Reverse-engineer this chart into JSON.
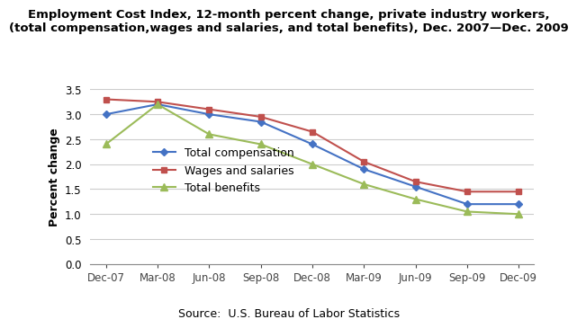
{
  "title_line1": "Employment Cost Index, 12-month percent change, private industry workers,",
  "title_line2": "(total compensation,wages and salaries, and total benefits), Dec. 2007—Dec. 2009",
  "source": "Source:  U.S. Bureau of Labor Statistics",
  "ylabel": "Percent change",
  "categories": [
    "Dec-07",
    "Mar-08",
    "Jun-08",
    "Sep-08",
    "Dec-08",
    "Mar-09",
    "Jun-09",
    "Sep-09",
    "Dec-09"
  ],
  "total_compensation": [
    3.0,
    3.2,
    3.0,
    2.85,
    2.4,
    1.9,
    1.55,
    1.2,
    1.2
  ],
  "wages_and_salaries": [
    3.3,
    3.25,
    3.1,
    2.95,
    2.65,
    2.05,
    1.65,
    1.45,
    1.45
  ],
  "total_benefits": [
    2.4,
    3.2,
    2.6,
    2.4,
    2.0,
    1.6,
    1.3,
    1.05,
    1.0
  ],
  "color_compensation": "#4472C4",
  "color_wages": "#C0504D",
  "color_benefits": "#9BBB59",
  "ylim": [
    0.0,
    3.5
  ],
  "yticks": [
    0.0,
    0.5,
    1.0,
    1.5,
    2.0,
    2.5,
    3.0,
    3.5
  ],
  "title_fontsize": 9.5,
  "axis_label_fontsize": 9,
  "tick_fontsize": 8.5,
  "legend_fontsize": 9,
  "source_fontsize": 9,
  "background_color": "#FFFFFF",
  "grid_color": "#CCCCCC"
}
